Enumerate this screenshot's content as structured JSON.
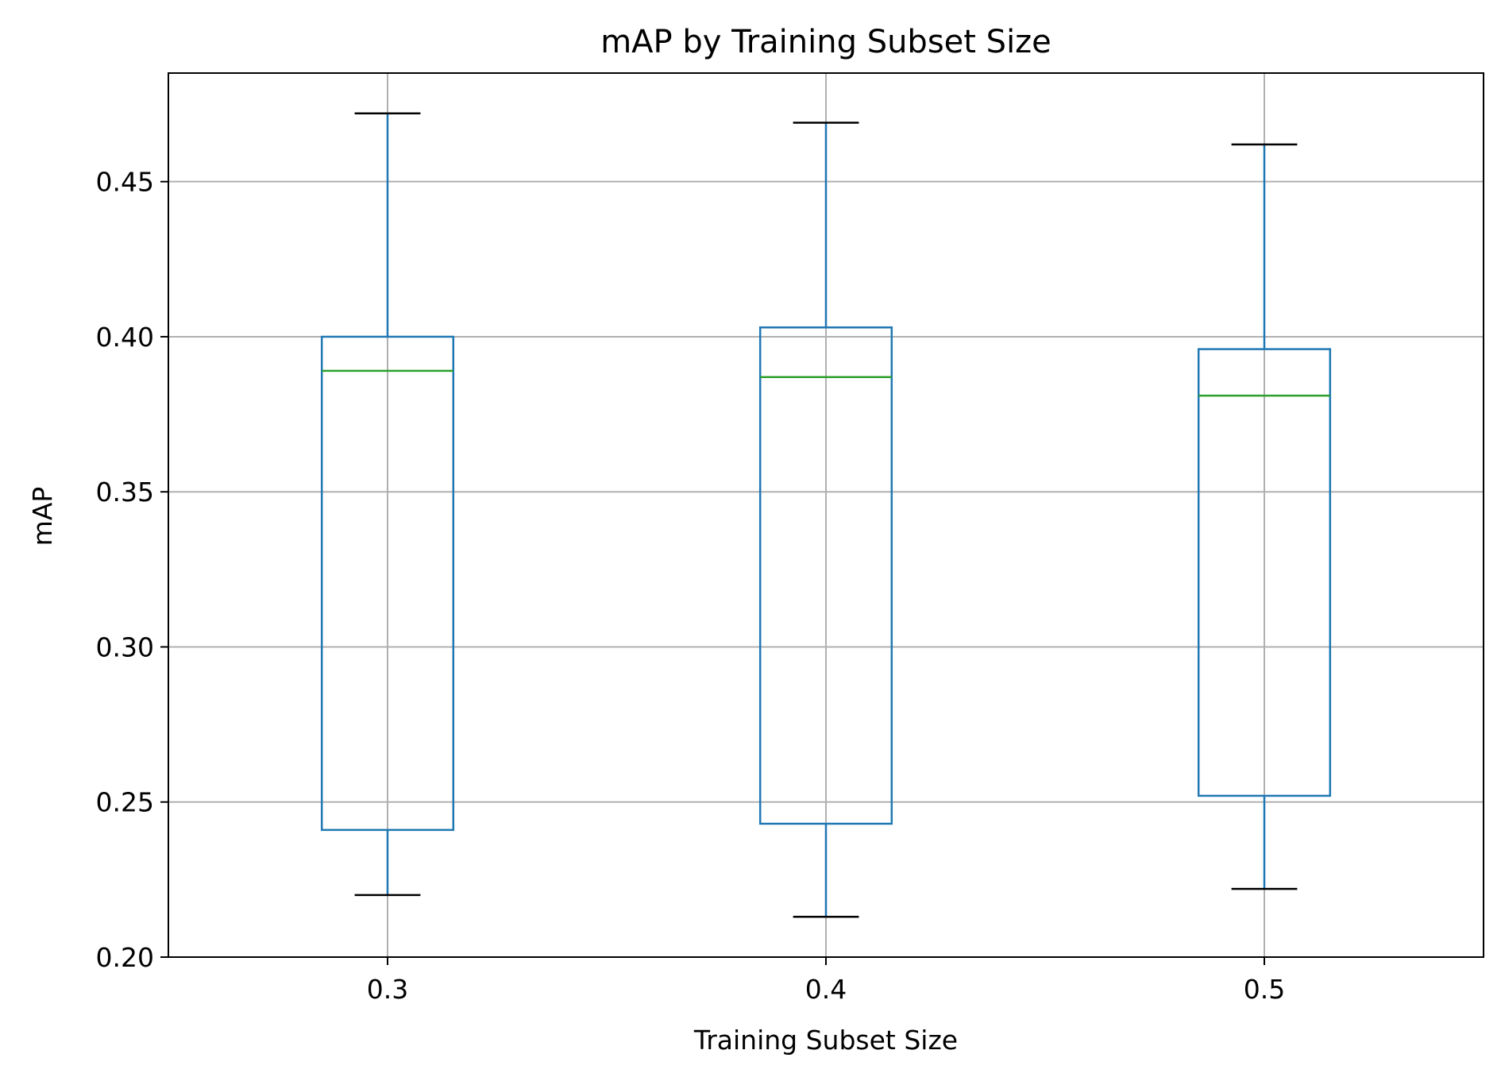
{
  "chart_data": {
    "type": "box",
    "title": "mAP by Training Subset Size",
    "xlabel": "Training Subset Size",
    "ylabel": "mAP",
    "categories": [
      "0.3",
      "0.4",
      "0.5"
    ],
    "ylim": [
      0.2,
      0.485
    ],
    "yticks": [
      0.2,
      0.25,
      0.3,
      0.35,
      0.4,
      0.45
    ],
    "ytick_labels": [
      "0.20",
      "0.25",
      "0.30",
      "0.35",
      "0.40",
      "0.45"
    ],
    "grid": true,
    "boxes": [
      {
        "category": "0.3",
        "whisker_low": 0.22,
        "q1": 0.241,
        "median": 0.389,
        "q3": 0.4,
        "whisker_high": 0.472
      },
      {
        "category": "0.4",
        "whisker_low": 0.213,
        "q1": 0.243,
        "median": 0.387,
        "q3": 0.403,
        "whisker_high": 0.469
      },
      {
        "category": "0.5",
        "whisker_low": 0.222,
        "q1": 0.252,
        "median": 0.381,
        "q3": 0.396,
        "whisker_high": 0.462
      }
    ],
    "colors": {
      "box": "#1f77b4",
      "median": "#2ca02c",
      "caps": "#000000",
      "grid": "#b0b0b0"
    }
  }
}
